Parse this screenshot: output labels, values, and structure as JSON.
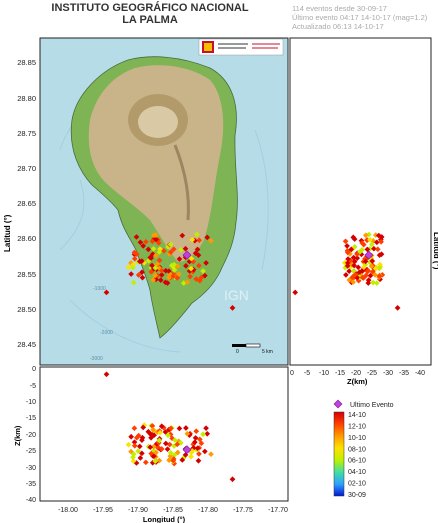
{
  "header": {
    "title": "INSTITUTO GEOGRÁFICO NACIONAL",
    "subtitle": "LA PALMA",
    "stats": [
      "114 eventos desde 30-09-17",
      "Último evento 04:17 14-10-17  (mag=1.2)",
      "Actualizado   06:13  14-10-17"
    ]
  },
  "map": {
    "lat_label": "Latitud (°)",
    "lon_label": "Longitud (°)",
    "lat_ticks": [
      "28.85",
      "28.80",
      "28.75",
      "28.70",
      "28.65",
      "28.60",
      "28.55",
      "28.50",
      "28.45"
    ],
    "lon_ticks": [
      "-18.00",
      "-17.95",
      "-17.90",
      "-17.85",
      "-17.80",
      "-17.75",
      "-17.70"
    ],
    "depth_labels": [
      "-1000",
      "-2000",
      "-3000"
    ],
    "watermark": "IGN",
    "scale_label": "5 km",
    "scale_zero": "0",
    "colors": {
      "sea": "#b6dce8",
      "land": "#c9b48a",
      "veg": "#7fb454"
    }
  },
  "right_panel": {
    "zlabel": "Z(km)",
    "ticks": [
      "0",
      "-5",
      "-10",
      "-15",
      "-20",
      "-25",
      "-30",
      "-35",
      "-40"
    ]
  },
  "bottom_panel": {
    "zlabel": "Z(km)",
    "ticks": [
      "0",
      "-5",
      "-10",
      "-15",
      "-20",
      "-25",
      "-30",
      "-35",
      "-40"
    ]
  },
  "legend": {
    "ultimo": "Ultimo Evento",
    "labels": [
      "14-10",
      "12-10",
      "10-10",
      "08-10",
      "06-10",
      "04-10",
      "02-10",
      "30-09"
    ],
    "colors": [
      "#d40000",
      "#ff4000",
      "#ff9b00",
      "#ffe000",
      "#c0f000",
      "#40e0a0",
      "#30a0ff",
      "#0018d0"
    ]
  }
}
